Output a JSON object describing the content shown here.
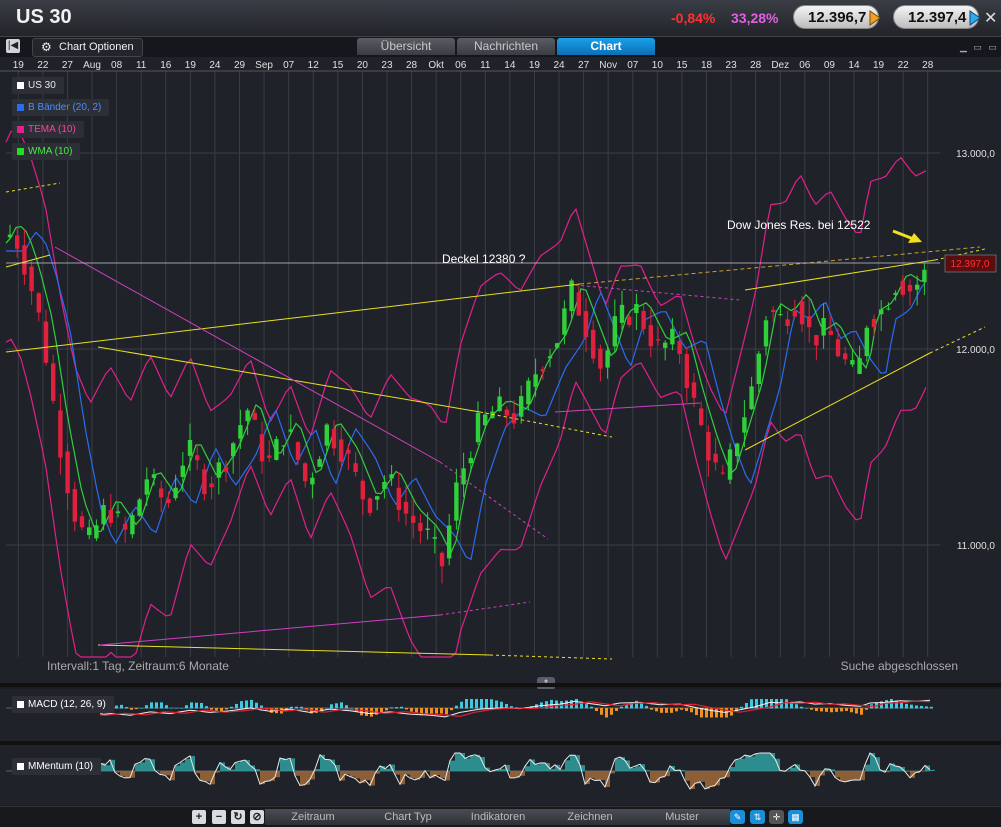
{
  "window": {
    "title": "US 30",
    "change_pct": "-0,84%",
    "volatility": "33,28%",
    "bid": "12.396,7",
    "ask": "12.397,4",
    "close_glyph": "✕"
  },
  "toolbar": {
    "chart_options": "Chart Optionen",
    "tabs": [
      "Übersicht",
      "Nachrichten",
      "Chart"
    ],
    "active_tab": "Chart"
  },
  "legend": [
    {
      "label": "US 30",
      "color": "#ffffff"
    },
    {
      "label": "B Bänder (20, 2)",
      "color": "#2a6cf0"
    },
    {
      "label": "TEMA (10)",
      "color": "#e0208c"
    },
    {
      "label": "WMA (10)",
      "color": "#22dd22"
    }
  ],
  "annotations": {
    "dow_res": "Dow Jones Res. bei 12522",
    "deckel": "Deckel 12380 ?",
    "interval": "Intervall:1 Tag, Zeitraum:6 Monate",
    "status": "Suche abgeschlossen",
    "price_tag": "12.397,0"
  },
  "indicators": {
    "macd": "MACD (12, 26, 9)",
    "momentum": "MMentum (10)"
  },
  "bottom_tabs": [
    "Zeitraum",
    "Chart Typ",
    "Indikatoren",
    "Zeichnen",
    "Muster"
  ],
  "bottom_buttons": [
    "+",
    "−",
    "↻",
    "⊘"
  ],
  "chart_data": {
    "type": "candlestick",
    "x_ticks": [
      "19",
      "22",
      "27",
      "Aug",
      "08",
      "11",
      "16",
      "19",
      "24",
      "29",
      "Sep",
      "07",
      "12",
      "15",
      "20",
      "23",
      "28",
      "Okt",
      "06",
      "11",
      "14",
      "19",
      "24",
      "27",
      "Nov",
      "07",
      "10",
      "15",
      "18",
      "23",
      "28",
      "Dez",
      "06",
      "09",
      "14",
      "19",
      "22",
      "28"
    ],
    "y_ticks": [
      "13.000,0",
      "12.000,0",
      "11.000,0"
    ],
    "y_tick_values": [
      13000,
      12000,
      11000
    ],
    "ylim": [
      10500,
      13500
    ],
    "series": [
      {
        "name": "US 30",
        "color": "#2fd03a",
        "down_color": "#e0203c"
      },
      {
        "name": "B Bänder (20, 2)",
        "color": "#2a6cf0"
      },
      {
        "name": "TEMA (10)",
        "color": "#e0208c"
      },
      {
        "name": "WMA (10)",
        "color": "#22dd22"
      }
    ],
    "last_price": 12397,
    "colors": {
      "up": "#2fd03a",
      "down": "#e0203c",
      "upper_band": "#e0208c",
      "lower_band": "#e0208c",
      "mid": "#2a6cf0",
      "trend": "#e8e020",
      "grid": "#3a3d45"
    }
  }
}
